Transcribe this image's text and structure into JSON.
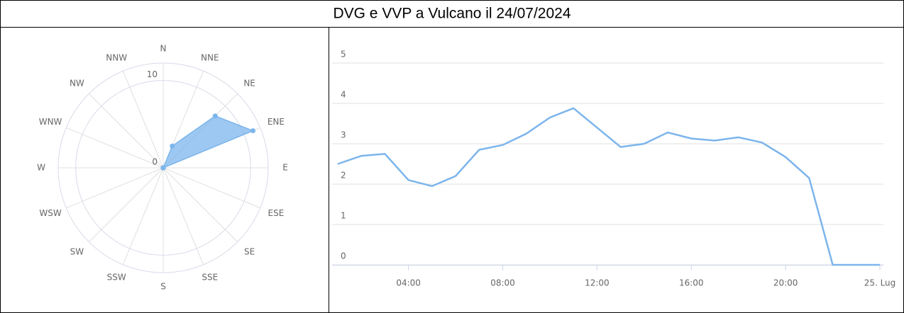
{
  "title": "DVG e VVP a Vulcano il 24/07/2024",
  "charts": [
    {
      "type": "polar",
      "categories": [
        "N",
        "NNE",
        "NE",
        "ENE",
        "E",
        "ESE",
        "SE",
        "SSE",
        "S",
        "SSW",
        "SW",
        "WSW",
        "W",
        "WNW",
        "NW",
        "NNW"
      ],
      "values": [
        0,
        2.7,
        8.4,
        11.1,
        0,
        0,
        0,
        0,
        0,
        0,
        0,
        0,
        0,
        0,
        0,
        0
      ],
      "color": "#7cb5ec",
      "ylim": [
        0,
        12
      ],
      "yticks": [
        0,
        10
      ]
    },
    {
      "type": "line",
      "x": [
        1,
        2,
        3,
        4,
        5,
        6,
        7,
        8,
        9,
        10,
        11,
        12,
        13,
        14,
        15,
        16,
        17,
        18,
        19,
        20,
        21,
        22,
        23,
        24
      ],
      "values": [
        2.5,
        2.7,
        2.75,
        2.1,
        1.95,
        2.2,
        2.85,
        2.97,
        3.25,
        3.65,
        3.88,
        3.4,
        2.92,
        3.0,
        3.28,
        3.13,
        3.08,
        3.16,
        3.03,
        2.67,
        2.15,
        0,
        0,
        0
      ],
      "color": "#7cb5ec",
      "xlim": [
        1,
        24
      ],
      "xticks": [
        {
          "value": 4,
          "label": "04:00"
        },
        {
          "value": 8,
          "label": "08:00"
        },
        {
          "value": 12,
          "label": "12:00"
        },
        {
          "value": 16,
          "label": "16:00"
        },
        {
          "value": 20,
          "label": "20:00"
        },
        {
          "value": 24,
          "label": "25. Lug"
        }
      ],
      "ylim": [
        0,
        5
      ],
      "yticks": [
        0,
        1,
        2,
        3,
        4,
        5
      ],
      "grid": true
    }
  ]
}
